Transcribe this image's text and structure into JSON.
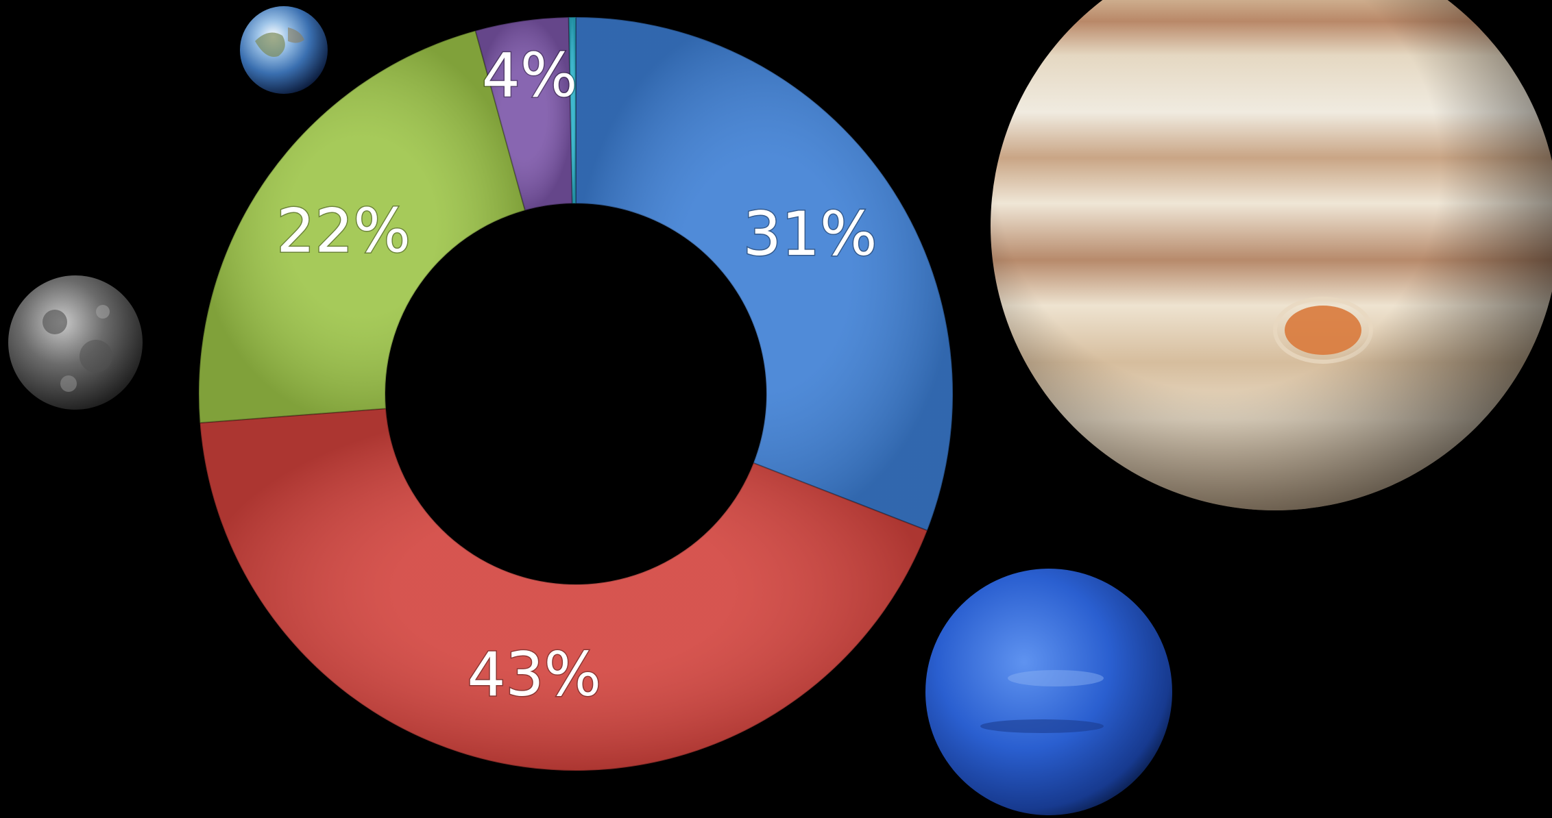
{
  "chart_data": {
    "type": "pie",
    "style": "donut",
    "start_angle_deg": 0,
    "direction": "clockwise",
    "slices": [
      {
        "label": "31%",
        "value": 31,
        "color": "#3c7ed4"
      },
      {
        "label": "43%",
        "value": 43,
        "color": "#d2423c"
      },
      {
        "label": "22%",
        "value": 22,
        "color": "#9cc447"
      },
      {
        "label": "4%",
        "value": 4,
        "color": "#7b55a8"
      },
      {
        "label": "",
        "value": 0.3,
        "color": "#2ab0c8"
      }
    ],
    "legend": "none",
    "grid": false
  },
  "decorations": {
    "background_color": "#000000",
    "planet_images": [
      "earth-image",
      "moon-image",
      "jupiter-image",
      "neptune-image"
    ]
  }
}
